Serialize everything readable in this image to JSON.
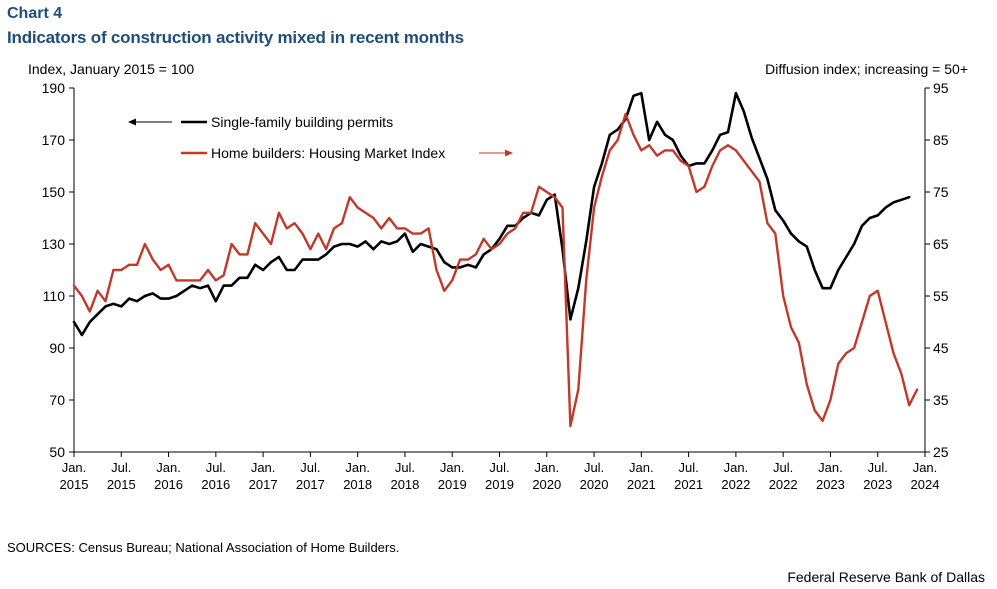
{
  "header": {
    "chart_number": "Chart 4",
    "title": "Indicators of construction activity mixed in recent months",
    "left_unit": "Index, January 2015 = 100",
    "right_unit": "Diffusion index; increasing = 50+"
  },
  "footer": {
    "sources": "SOURCES: Census Bureau; National Association of Home Builders.",
    "credit": "Federal Reserve Bank of Dallas"
  },
  "colors": {
    "permits": "#000000",
    "hmi": "#c0392b",
    "axis": "#000000"
  },
  "chart_data": {
    "type": "line",
    "title": "Indicators of construction activity mixed in recent months",
    "ylabel": "Index, January 2015 = 100",
    "y2label": "Diffusion index; increasing = 50+",
    "ylim": [
      50,
      190
    ],
    "y2lim": [
      25,
      95
    ],
    "yticks": [
      50,
      70,
      90,
      110,
      130,
      150,
      170,
      190
    ],
    "y2ticks": [
      25,
      35,
      45,
      55,
      65,
      75,
      85,
      95
    ],
    "grid": false,
    "x_start": "2015-01",
    "x_end": "2024-01",
    "xtick_labels": [
      {
        "line1": "Jan.",
        "line2": "2015"
      },
      {
        "line1": "Jul.",
        "line2": "2015"
      },
      {
        "line1": "Jan.",
        "line2": "2016"
      },
      {
        "line1": "Jul.",
        "line2": "2016"
      },
      {
        "line1": "Jan.",
        "line2": "2017"
      },
      {
        "line1": "Jul.",
        "line2": "2017"
      },
      {
        "line1": "Jan.",
        "line2": "2018"
      },
      {
        "line1": "Jul.",
        "line2": "2018"
      },
      {
        "line1": "Jan.",
        "line2": "2019"
      },
      {
        "line1": "Jul.",
        "line2": "2019"
      },
      {
        "line1": "Jan.",
        "line2": "2020"
      },
      {
        "line1": "Jul.",
        "line2": "2020"
      },
      {
        "line1": "Jan.",
        "line2": "2021"
      },
      {
        "line1": "Jul.",
        "line2": "2021"
      },
      {
        "line1": "Jan.",
        "line2": "2022"
      },
      {
        "line1": "Jul.",
        "line2": "2022"
      },
      {
        "line1": "Jan.",
        "line2": "2023"
      },
      {
        "line1": "Jul.",
        "line2": "2023"
      },
      {
        "line1": "Jan.",
        "line2": "2024"
      }
    ],
    "legend": [
      {
        "label": "Single-family building permits",
        "series": "permits",
        "axis": "left"
      },
      {
        "label": "Home builders: Housing Market Index",
        "series": "hmi",
        "axis": "right"
      }
    ],
    "series": [
      {
        "name": "Single-family building permits",
        "key": "permits",
        "axis": "left",
        "start": "2015-01",
        "values": [
          100,
          95,
          100,
          103,
          106,
          107,
          106,
          109,
          108,
          110,
          111,
          109,
          109,
          110,
          112,
          114,
          113,
          114,
          108,
          114,
          114,
          117,
          117,
          122,
          120,
          123,
          125,
          120,
          120,
          124,
          124,
          124,
          126,
          129,
          130,
          130,
          129,
          131,
          128,
          131,
          130,
          131,
          134,
          127,
          130,
          129,
          128,
          123,
          121,
          121,
          122,
          121,
          126,
          128,
          132,
          137,
          137,
          140,
          142,
          141,
          147,
          149,
          128,
          101,
          113,
          131,
          152,
          161,
          172,
          174,
          178,
          187,
          188,
          170,
          177,
          172,
          170,
          164,
          160,
          161,
          161,
          166,
          172,
          173,
          188,
          181,
          171,
          163,
          155,
          143,
          139,
          134,
          131,
          129,
          120,
          113,
          113,
          120,
          125,
          130,
          137,
          140,
          141,
          144,
          146,
          147,
          148
        ]
      },
      {
        "name": "Home builders: Housing Market Index",
        "key": "hmi",
        "axis": "right",
        "start": "2015-01",
        "values": [
          57,
          55,
          52,
          56,
          54,
          60,
          60,
          61,
          61,
          65,
          62,
          60,
          61,
          58,
          58,
          58,
          58,
          60,
          58,
          59,
          65,
          63,
          63,
          69,
          67,
          65,
          71,
          68,
          69,
          67,
          64,
          67,
          64,
          68,
          69,
          74,
          72,
          71,
          70,
          68,
          70,
          68,
          68,
          67,
          67,
          68,
          60,
          56,
          58,
          62,
          62,
          63,
          66,
          64,
          65,
          67,
          68,
          71,
          71,
          76,
          75,
          74,
          72,
          30,
          37,
          58,
          72,
          78,
          83,
          85,
          90,
          86,
          83,
          84,
          82,
          83,
          83,
          81,
          80,
          75,
          76,
          80,
          83,
          84,
          83,
          81,
          79,
          77,
          69,
          67,
          55,
          49,
          46,
          38,
          33,
          31,
          35,
          42,
          44,
          45,
          50,
          55,
          56,
          50,
          44,
          40,
          34,
          37
        ]
      }
    ]
  }
}
